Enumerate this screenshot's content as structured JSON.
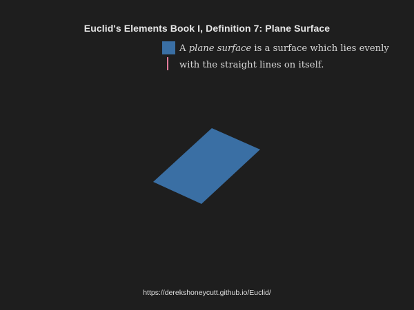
{
  "title": "Euclid's Elements Book I, Definition 7: Plane Surface",
  "definition": {
    "part1": "A ",
    "emphasis": "plane surface",
    "part2": " is a surface which lies evenly with the straight lines on itself."
  },
  "colors": {
    "plane": "#3a6fa4",
    "line": "#e27a9a",
    "background": "#1e1e1e"
  },
  "footer": {
    "url": "https://derekshoneycutt.github.io/Euclid/"
  }
}
